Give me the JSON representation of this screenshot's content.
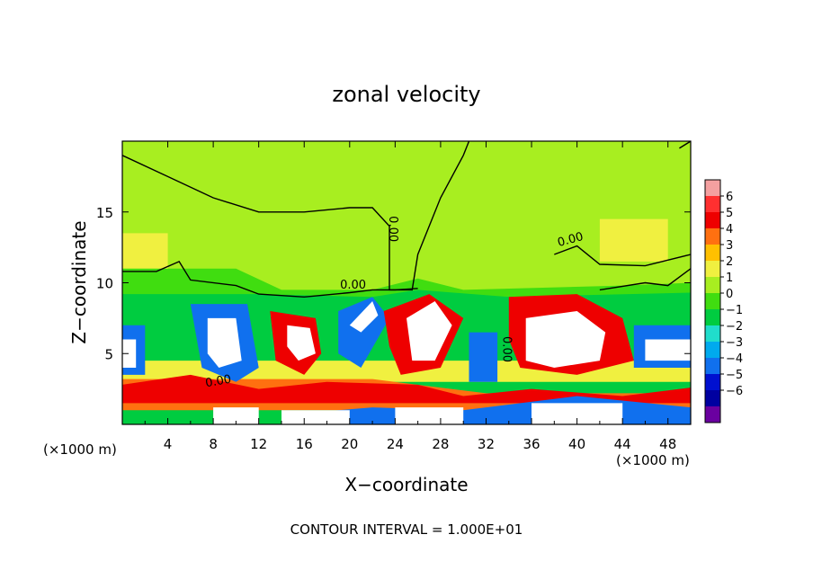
{
  "chart_data": {
    "type": "heatmap",
    "title": "zonal velocity",
    "xlabel": "X−coordinate",
    "ylabel": "Z−coordinate",
    "x_unit_left": "(×1000 m)",
    "x_unit_right": "(×1000 m)",
    "footer": "CONTOUR INTERVAL = 1.000E+01",
    "xlim": [
      0,
      50
    ],
    "ylim": [
      0,
      20
    ],
    "x_ticks": [
      4,
      8,
      12,
      16,
      20,
      24,
      28,
      32,
      36,
      40,
      44,
      48
    ],
    "x_tick_labels": [
      "4",
      "8",
      "12",
      "16",
      "20",
      "24",
      "28",
      "32",
      "36",
      "40",
      "44",
      "48"
    ],
    "y_ticks": [
      5,
      10,
      15
    ],
    "y_tick_labels": [
      "5",
      "10",
      "15"
    ],
    "colorbar": {
      "levels": [
        -6,
        -5,
        -4,
        -3,
        -2,
        -1,
        0,
        1,
        2,
        3,
        4,
        5,
        6
      ],
      "labels": [
        "6",
        "5",
        "4",
        "3",
        "2",
        "1",
        "0",
        "−1",
        "−2",
        "−3",
        "−4",
        "−5",
        "−6"
      ],
      "colors": [
        "#f4a0a0",
        "#ff3030",
        "#ee0000",
        "#ff7010",
        "#ffc000",
        "#f0f040",
        "#a8ee20",
        "#40dd10",
        "#00cc40",
        "#20ddcc",
        "#00aaee",
        "#1070ee",
        "#0010d0",
        "#0000a0",
        "#6a00a0"
      ]
    },
    "contour_labels": [
      "0.00",
      "0.00",
      "0.00",
      "0.00",
      "0.00"
    ],
    "regions": [
      {
        "value": 0.3,
        "poly": [
          [
            0,
            20
          ],
          [
            50,
            20
          ],
          [
            50,
            9
          ],
          [
            0,
            9
          ]
        ]
      },
      {
        "value": 1.2,
        "poly": [
          [
            42,
            14.5
          ],
          [
            48,
            14.5
          ],
          [
            48,
            11.5
          ],
          [
            42,
            11.5
          ]
        ]
      },
      {
        "value": 1.5,
        "poly": [
          [
            0,
            13.5
          ],
          [
            4,
            13.5
          ],
          [
            4,
            10
          ],
          [
            0,
            10
          ]
        ]
      },
      {
        "value": -0.5,
        "poly": [
          [
            0,
            11
          ],
          [
            10,
            11
          ],
          [
            14,
            9.5
          ],
          [
            22,
            9.5
          ],
          [
            26,
            10.3
          ],
          [
            30,
            9.5
          ],
          [
            44,
            9.8
          ],
          [
            50,
            10
          ],
          [
            50,
            8.5
          ],
          [
            0,
            8.5
          ]
        ]
      },
      {
        "value": -2,
        "poly": [
          [
            0,
            9.2
          ],
          [
            12,
            9.2
          ],
          [
            22,
            9.0
          ],
          [
            26,
            9.5
          ],
          [
            34,
            9.0
          ],
          [
            50,
            9.3
          ],
          [
            50,
            0
          ],
          [
            0,
            0
          ]
        ]
      },
      {
        "value": 1.5,
        "poly": [
          [
            0,
            4.5
          ],
          [
            50,
            4.5
          ],
          [
            50,
            3
          ],
          [
            0,
            3
          ]
        ]
      },
      {
        "value": 3.5,
        "poly": [
          [
            0,
            3.2
          ],
          [
            22,
            3.2
          ],
          [
            32,
            2.2
          ],
          [
            50,
            2.2
          ],
          [
            50,
            1
          ],
          [
            0,
            1
          ]
        ]
      },
      {
        "value": 4.5,
        "poly": [
          [
            0,
            2.8
          ],
          [
            6,
            3.5
          ],
          [
            12,
            2.5
          ],
          [
            18,
            3.0
          ],
          [
            26,
            2.8
          ],
          [
            30,
            2.0
          ],
          [
            36,
            2.5
          ],
          [
            44,
            2.0
          ],
          [
            50,
            2.6
          ],
          [
            50,
            1.5
          ],
          [
            0,
            1.5
          ]
        ]
      },
      {
        "value": -4.5,
        "poly": [
          [
            16,
            0
          ],
          [
            50,
            0
          ],
          [
            50,
            1.2
          ],
          [
            40,
            2.0
          ],
          [
            30,
            1.0
          ],
          [
            22,
            1.2
          ],
          [
            16,
            0.8
          ]
        ]
      },
      {
        "value": -6.5,
        "poly": [
          [
            8,
            0
          ],
          [
            12,
            0
          ],
          [
            12,
            1.2
          ],
          [
            8,
            1.2
          ]
        ]
      },
      {
        "value": -6.5,
        "poly": [
          [
            14,
            0
          ],
          [
            20,
            0
          ],
          [
            20,
            1.0
          ],
          [
            14,
            1.0
          ]
        ]
      },
      {
        "value": -6.5,
        "poly": [
          [
            24,
            0
          ],
          [
            30,
            0
          ],
          [
            30,
            1.2
          ],
          [
            24,
            1.2
          ]
        ]
      },
      {
        "value": -6.5,
        "poly": [
          [
            36,
            0
          ],
          [
            44,
            0
          ],
          [
            44,
            1.5
          ],
          [
            36,
            1.5
          ]
        ]
      },
      {
        "value": -4.5,
        "poly": [
          [
            6,
            8.5
          ],
          [
            11,
            8.5
          ],
          [
            12,
            4
          ],
          [
            10,
            3
          ],
          [
            7,
            4
          ]
        ]
      },
      {
        "value": -6.5,
        "poly": [
          [
            7.5,
            7.5
          ],
          [
            10,
            7.5
          ],
          [
            10.5,
            4.5
          ],
          [
            8.5,
            4
          ],
          [
            7.5,
            5
          ]
        ]
      },
      {
        "value": 4,
        "poly": [
          [
            13,
            8
          ],
          [
            17,
            7.5
          ],
          [
            17.5,
            5
          ],
          [
            16,
            3.5
          ],
          [
            13.5,
            4.5
          ]
        ]
      },
      {
        "value": 6.5,
        "poly": [
          [
            14.5,
            7
          ],
          [
            16.5,
            6.8
          ],
          [
            17,
            5
          ],
          [
            15.5,
            4.5
          ],
          [
            14.5,
            5.5
          ]
        ]
      },
      {
        "value": -4.5,
        "poly": [
          [
            19,
            8
          ],
          [
            22,
            9
          ],
          [
            23.5,
            7.5
          ],
          [
            21,
            4
          ],
          [
            19,
            5
          ]
        ]
      },
      {
        "value": -6.5,
        "poly": [
          [
            20,
            7
          ],
          [
            22,
            8.7
          ],
          [
            22.5,
            7.7
          ],
          [
            21,
            6.5
          ]
        ]
      },
      {
        "value": 4.5,
        "poly": [
          [
            23,
            8
          ],
          [
            27,
            9.2
          ],
          [
            30,
            7.5
          ],
          [
            28,
            4
          ],
          [
            24.5,
            3.5
          ],
          [
            23.5,
            5.5
          ]
        ]
      },
      {
        "value": 6.5,
        "poly": [
          [
            25,
            7.5
          ],
          [
            27.5,
            8.7
          ],
          [
            29,
            7
          ],
          [
            27.5,
            4.5
          ],
          [
            25.5,
            4.5
          ]
        ]
      },
      {
        "value": -5,
        "poly": [
          [
            30.5,
            6.5
          ],
          [
            33,
            6.5
          ],
          [
            33,
            3
          ],
          [
            30.5,
            3
          ]
        ]
      },
      {
        "value": 4.5,
        "poly": [
          [
            34,
            9
          ],
          [
            40,
            9.2
          ],
          [
            44,
            7.5
          ],
          [
            45,
            4.5
          ],
          [
            40,
            3.5
          ],
          [
            35,
            4
          ],
          [
            34,
            6
          ]
        ]
      },
      {
        "value": 6.5,
        "poly": [
          [
            35.5,
            7.5
          ],
          [
            40,
            8
          ],
          [
            42.5,
            6.5
          ],
          [
            42,
            4.5
          ],
          [
            38,
            4
          ],
          [
            35.5,
            4.5
          ]
        ]
      },
      {
        "value": -4.5,
        "poly": [
          [
            45,
            7
          ],
          [
            50,
            7
          ],
          [
            50,
            4
          ],
          [
            45,
            4
          ]
        ]
      },
      {
        "value": -6.5,
        "poly": [
          [
            46,
            6
          ],
          [
            50,
            6
          ],
          [
            50,
            4.5
          ],
          [
            46,
            4.5
          ]
        ]
      },
      {
        "value": -4.5,
        "poly": [
          [
            0,
            7
          ],
          [
            2,
            7
          ],
          [
            2,
            3.5
          ],
          [
            0,
            3.5
          ]
        ]
      },
      {
        "value": -6.5,
        "poly": [
          [
            0,
            6
          ],
          [
            1.2,
            6
          ],
          [
            1.2,
            4
          ],
          [
            0,
            4
          ]
        ]
      }
    ],
    "contours": [
      [
        [
          0,
          19
        ],
        [
          4,
          17.5
        ],
        [
          8,
          16
        ],
        [
          12,
          15
        ],
        [
          16,
          15
        ],
        [
          20,
          15.3
        ],
        [
          22,
          15.3
        ],
        [
          23.5,
          14
        ],
        [
          23.5,
          9.5
        ],
        [
          25.5,
          9.5
        ],
        [
          26,
          12
        ],
        [
          28,
          16
        ],
        [
          30,
          19
        ],
        [
          30.5,
          20
        ]
      ],
      [
        [
          0,
          10.8
        ],
        [
          3,
          10.8
        ],
        [
          5,
          11.5
        ],
        [
          6,
          10.2
        ],
        [
          10,
          9.8
        ],
        [
          12,
          9.2
        ],
        [
          16,
          9
        ],
        [
          20,
          9.3
        ],
        [
          22,
          9.5
        ],
        [
          24,
          9.5
        ],
        [
          26,
          9.6
        ]
      ],
      [
        [
          38,
          12
        ],
        [
          40,
          12.6
        ],
        [
          42,
          11.3
        ],
        [
          46,
          11.2
        ],
        [
          50,
          12
        ]
      ],
      [
        [
          42,
          9.5
        ],
        [
          46,
          10
        ],
        [
          48,
          9.8
        ],
        [
          50,
          11
        ]
      ],
      [
        [
          50,
          20
        ],
        [
          49,
          19.5
        ]
      ]
    ]
  }
}
